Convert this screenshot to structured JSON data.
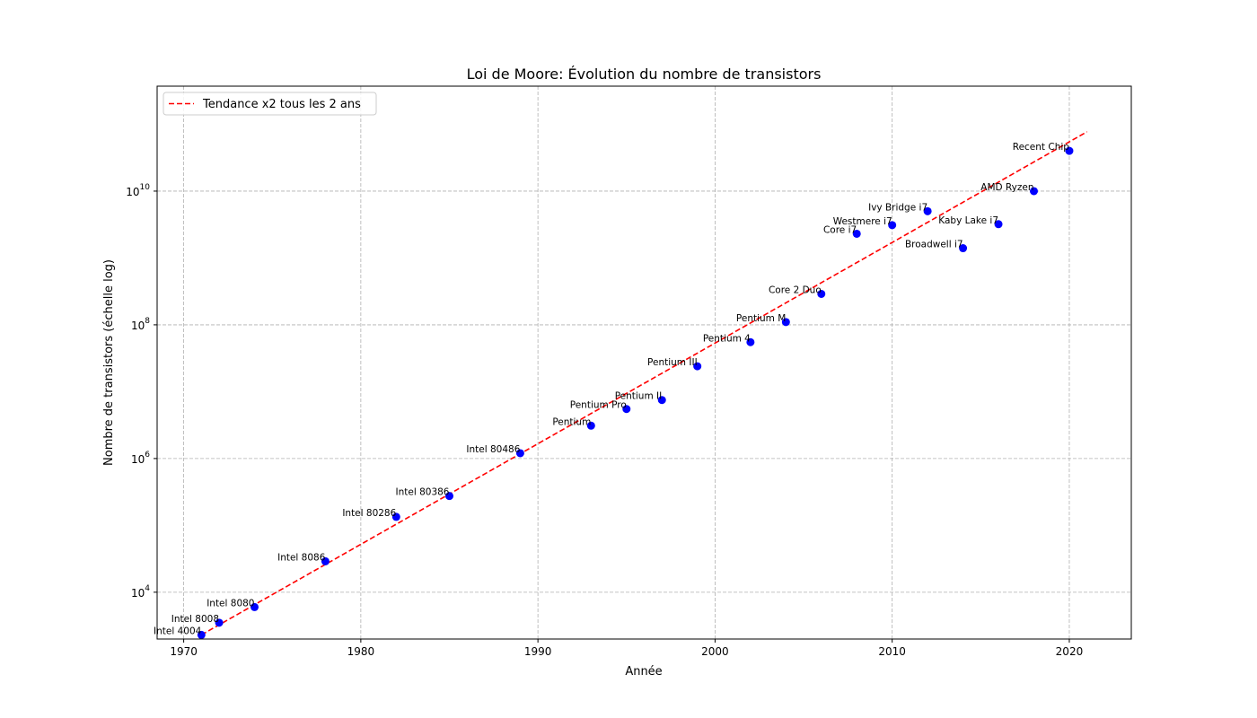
{
  "chart_data": {
    "type": "scatter",
    "title": "Loi de Moore: Évolution du nombre de transistors",
    "xlabel": "Année",
    "ylabel": "Nombre de transistors (échelle log)",
    "xlim": [
      1968.5,
      2023.5
    ],
    "ylim_log10": [
      3.3,
      11.57
    ],
    "y_scale": "log",
    "grid": true,
    "legend_position": "top-left",
    "x_ticks": [
      1970,
      1980,
      1990,
      2000,
      2010,
      2020
    ],
    "y_ticks": [
      {
        "base": "10",
        "exp": "4",
        "value": 10000
      },
      {
        "base": "10",
        "exp": "6",
        "value": 1000000
      },
      {
        "base": "10",
        "exp": "8",
        "value": 100000000
      },
      {
        "base": "10",
        "exp": "10",
        "value": 10000000000
      }
    ],
    "points": [
      {
        "label": "Intel 4004",
        "year": 1971,
        "transistors": 2300
      },
      {
        "label": "Intel 8008",
        "year": 1972,
        "transistors": 3500
      },
      {
        "label": "Intel 8080",
        "year": 1974,
        "transistors": 6000
      },
      {
        "label": "Intel 8086",
        "year": 1978,
        "transistors": 29000
      },
      {
        "label": "Intel 80286",
        "year": 1982,
        "transistors": 134000
      },
      {
        "label": "Intel 80386",
        "year": 1985,
        "transistors": 275000
      },
      {
        "label": "Intel 80486",
        "year": 1989,
        "transistors": 1200000
      },
      {
        "label": "Pentium",
        "year": 1993,
        "transistors": 3100000
      },
      {
        "label": "Pentium Pro",
        "year": 1995,
        "transistors": 5500000
      },
      {
        "label": "Pentium II",
        "year": 1997,
        "transistors": 7500000
      },
      {
        "label": "Pentium III",
        "year": 1999,
        "transistors": 24000000
      },
      {
        "label": "Pentium 4",
        "year": 2002,
        "transistors": 55000000
      },
      {
        "label": "Pentium M",
        "year": 2004,
        "transistors": 110000000
      },
      {
        "label": "Core 2 Duo",
        "year": 2006,
        "transistors": 290000000
      },
      {
        "label": "Core i7",
        "year": 2008,
        "transistors": 2300000000
      },
      {
        "label": "Westmere i7",
        "year": 2010,
        "transistors": 3100000000
      },
      {
        "label": "Ivy Bridge i7",
        "year": 2012,
        "transistors": 5000000000
      },
      {
        "label": "Broadwell i7",
        "year": 2014,
        "transistors": 1400000000
      },
      {
        "label": "Kaby Lake i7",
        "year": 2016,
        "transistors": 3200000000
      },
      {
        "label": "AMD Ryzen",
        "year": 2018,
        "transistors": 10000000000
      },
      {
        "label": "Recent Chip",
        "year": 2020,
        "transistors": 40000000000
      }
    ],
    "trend": {
      "name": "Tendance x2 tous les 2 ans",
      "x": [
        1971,
        2021
      ],
      "y": [
        2300,
        77175193600
      ]
    },
    "colors": {
      "points": "#0000ff",
      "trend": "#ff0000",
      "grid": "#b0b0b0"
    }
  }
}
